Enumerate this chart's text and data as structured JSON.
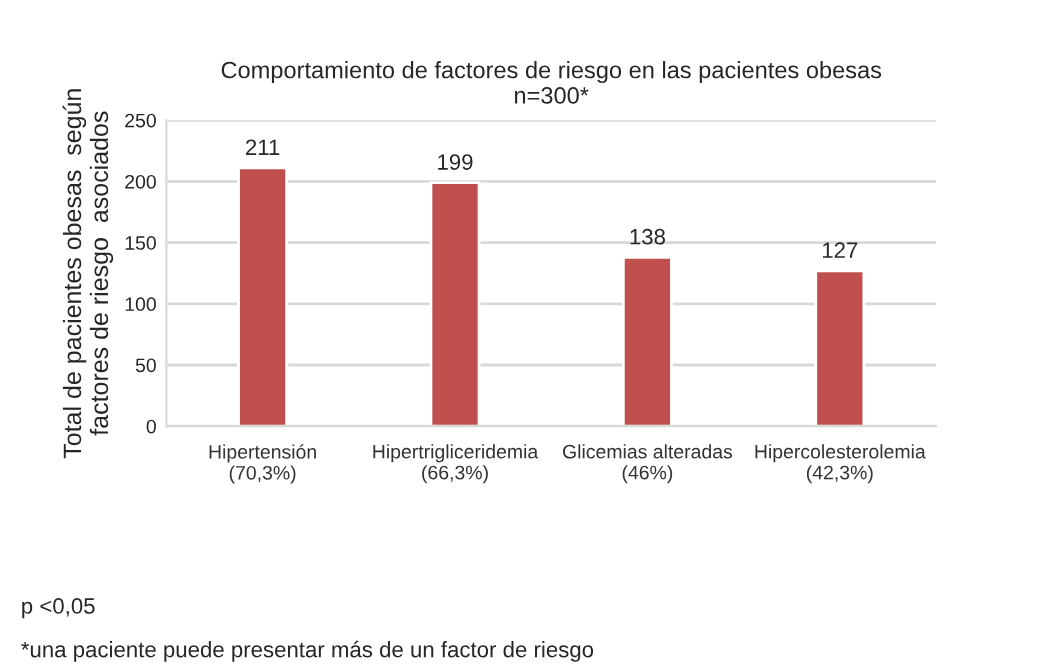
{
  "chart_data": {
    "type": "bar",
    "title": "Comportamiento de factores de riesgo en las pacientes obesas\nn=300*",
    "ylabel": "Total de pacientes obesas  según\nfactores de riesgo  asociados",
    "categories": [
      "Hipertensión\n(70,3%)",
      "Hipertrigliceridemia\n(66,3%)",
      "Glicemias alteradas\n(46%)",
      "Hipercolesterolemia\n(42,3%)"
    ],
    "values": [
      211,
      199,
      138,
      127
    ],
    "color": "#c0504d",
    "ylim": [
      0,
      250
    ],
    "yticks": [
      0,
      50,
      100,
      150,
      200,
      250
    ],
    "grid": "y",
    "data_labels": true,
    "annotations": [
      "p <0,05",
      "*una paciente puede presentar más de un factor de riesgo"
    ]
  }
}
